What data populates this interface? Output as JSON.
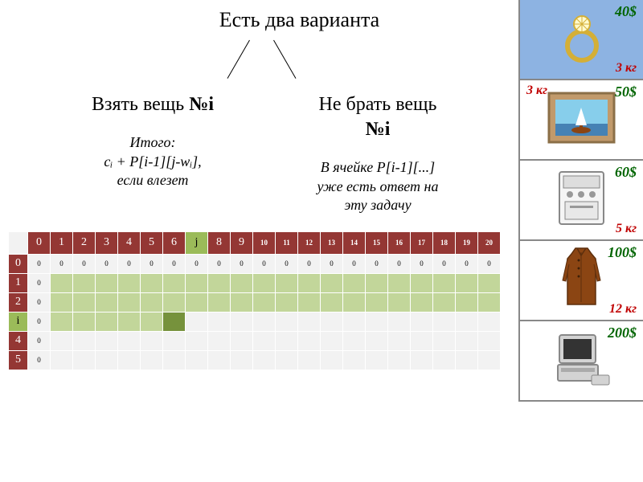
{
  "title": "Есть два варианта",
  "left": {
    "heading": "Взять вещь №i",
    "desc_line1": "Итого:",
    "desc_line2": "cᵢ + P[i-1][j-wᵢ],",
    "desc_line3": "если влезет"
  },
  "right": {
    "heading_line1": "Не брать вещь",
    "heading_line2": "№i",
    "desc_line1": "В ячейке P[i-1][...]",
    "desc_line2": "уже есть ответ на",
    "desc_line3": "эту задачу"
  },
  "table": {
    "col_headers": [
      "0",
      "1",
      "2",
      "3",
      "4",
      "5",
      "6",
      "j",
      "8",
      "9",
      "10",
      "11",
      "12",
      "13",
      "14",
      "15",
      "16",
      "17",
      "18",
      "19",
      "20"
    ],
    "row_headers": [
      "0",
      "1",
      "2",
      "i",
      "4",
      "5"
    ],
    "header_small_from_idx": 10,
    "j_col_index": 7,
    "i_row_index": 3,
    "row0_value": "0",
    "colors": {
      "header_bg": "#943734",
      "header_fg": "#ffffff",
      "highlight_bg": "#9bbb59",
      "highlight_fg": "#000000",
      "cell_bg": "#f2f2f2",
      "green_bg": "#c2d69a",
      "dark_green_bg": "#76923c"
    }
  },
  "items": [
    {
      "price": "40$",
      "weight": "3 кг",
      "active": true,
      "icon": "ring"
    },
    {
      "price": "50$",
      "weight": "3 кг",
      "weight_pos": "left",
      "icon": "painting"
    },
    {
      "price": "60$",
      "weight": "5 кг",
      "icon": "stove"
    },
    {
      "price": "100$",
      "weight": "12 кг",
      "icon": "coat"
    },
    {
      "price": "200$",
      "weight": "",
      "icon": "computer"
    }
  ],
  "styling": {
    "price_color": "#006400",
    "weight_color": "#c00000",
    "active_item_bg": "#8db3e2",
    "title_fontsize": 26,
    "option_title_fontsize": 24,
    "option_desc_fontsize": 18
  }
}
